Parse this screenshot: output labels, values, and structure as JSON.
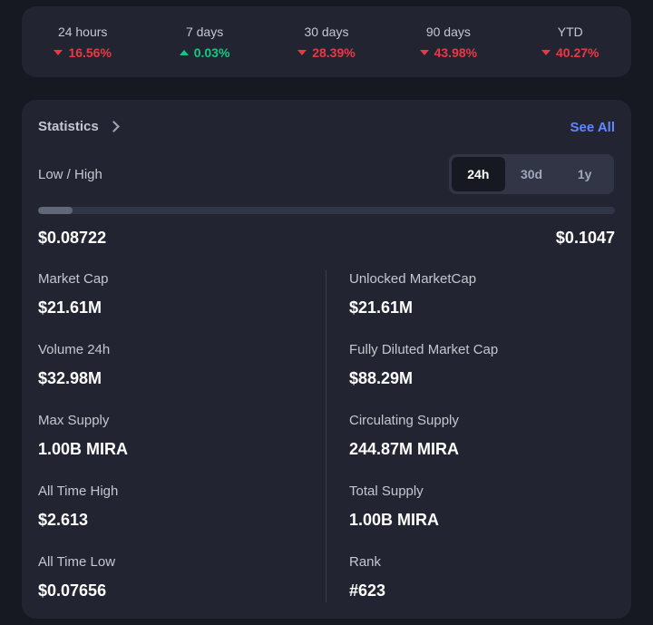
{
  "performance": [
    {
      "label": "24 hours",
      "value": "16.56%",
      "direction": "down"
    },
    {
      "label": "7 days",
      "value": "0.03%",
      "direction": "up"
    },
    {
      "label": "30 days",
      "value": "28.39%",
      "direction": "down"
    },
    {
      "label": "90 days",
      "value": "43.98%",
      "direction": "down"
    },
    {
      "label": "YTD",
      "value": "40.27%",
      "direction": "down"
    }
  ],
  "colors": {
    "down": "#ea3943",
    "up": "#16c784",
    "link": "#6188ff",
    "card_bg": "#222531",
    "page_bg": "#171922"
  },
  "statistics": {
    "title": "Statistics",
    "see_all": "See All",
    "low_high_label": "Low / High",
    "range_options": [
      "24h",
      "30d",
      "1y"
    ],
    "selected_range": "24h",
    "low": "$0.08722",
    "high": "$0.1047",
    "range_progress_fraction": 0.06,
    "left": [
      {
        "label": "Market Cap",
        "value": "$21.61M"
      },
      {
        "label": "Volume 24h",
        "value": "$32.98M"
      },
      {
        "label": "Max Supply",
        "value": "1.00B MIRA"
      },
      {
        "label": "All Time High",
        "value": "$2.613"
      },
      {
        "label": "All Time Low",
        "value": "$0.07656"
      }
    ],
    "right": [
      {
        "label": "Unlocked MarketCap",
        "value": "$21.61M"
      },
      {
        "label": "Fully Diluted Market Cap",
        "value": "$88.29M"
      },
      {
        "label": "Circulating Supply",
        "value": "244.87M MIRA"
      },
      {
        "label": "Total Supply",
        "value": "1.00B MIRA"
      },
      {
        "label": "Rank",
        "value": "#623"
      }
    ]
  }
}
